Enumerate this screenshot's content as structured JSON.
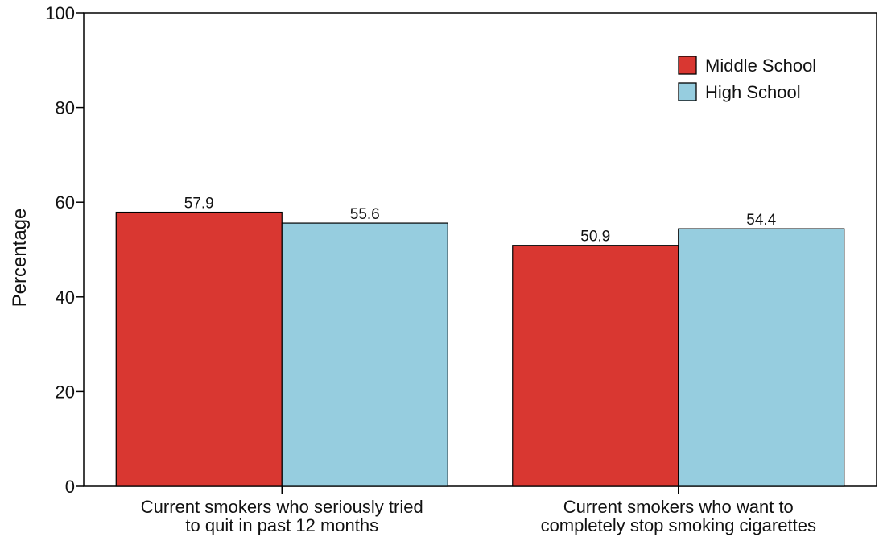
{
  "chart_data": {
    "type": "bar",
    "title": "",
    "xlabel": "",
    "ylabel": "Percentage",
    "ylim": [
      0,
      100
    ],
    "yticks": [
      0,
      20,
      40,
      60,
      80,
      100
    ],
    "categories": [
      [
        "Current smokers who seriously tried",
        "to quit in past 12 months"
      ],
      [
        "Current smokers who want to",
        "completely stop smoking cigarettes"
      ]
    ],
    "series": [
      {
        "name": "Middle School",
        "values": [
          57.9,
          50.9
        ],
        "color": "#d93731"
      },
      {
        "name": "High School",
        "values": [
          55.6,
          54.4
        ],
        "color": "#96cddf"
      }
    ],
    "data_labels": [
      [
        "57.9",
        "50.9"
      ],
      [
        "55.6",
        "54.4"
      ]
    ],
    "legend_position": "top-right",
    "grid": false
  }
}
